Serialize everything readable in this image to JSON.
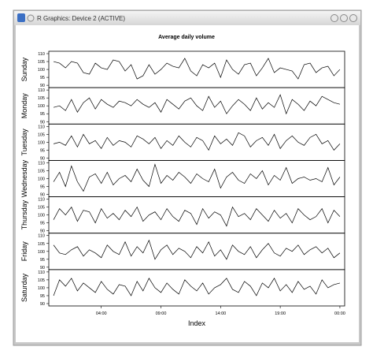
{
  "window": {
    "title": "R Graphics: Device 2 (ACTIVE)"
  },
  "chart_data": [
    {
      "type": "line",
      "title": "Average daily volume",
      "ylabel": "Sunday",
      "ylim": [
        88.5,
        111.5
      ],
      "yticks": [
        90,
        95,
        100,
        105,
        110
      ],
      "values": [
        105,
        104,
        101,
        105,
        104,
        98,
        97,
        104,
        101,
        100,
        106,
        105,
        99,
        103,
        94,
        96,
        103,
        97,
        100,
        104,
        102,
        101,
        107,
        99,
        96,
        103,
        101,
        104,
        95,
        106,
        100,
        97,
        103,
        104,
        96,
        101,
        107,
        98,
        101,
        100,
        99,
        94,
        103,
        104,
        98,
        101,
        102,
        96,
        100
      ]
    },
    {
      "type": "line",
      "ylabel": "Monday",
      "ylim": [
        88.5,
        111.5
      ],
      "yticks": [
        90,
        95,
        100,
        105,
        110
      ],
      "values": [
        99,
        100,
        97,
        104,
        96,
        102,
        105,
        98,
        104,
        101,
        99,
        103,
        102,
        100,
        104,
        101,
        99,
        102,
        96,
        104,
        101,
        98,
        103,
        105,
        100,
        97,
        106,
        99,
        103,
        95,
        100,
        104,
        101,
        97,
        105,
        98,
        102,
        99,
        107,
        95,
        104,
        101,
        97,
        103,
        100,
        106,
        104,
        102,
        101
      ]
    },
    {
      "type": "line",
      "ylabel": "Tuesday",
      "ylim": [
        88.5,
        111.5
      ],
      "yticks": [
        90,
        95,
        100,
        105,
        110
      ],
      "values": [
        99,
        100,
        98,
        104,
        97,
        105,
        99,
        101,
        96,
        103,
        98,
        101,
        100,
        97,
        104,
        102,
        99,
        103,
        96,
        101,
        98,
        104,
        100,
        97,
        103,
        101,
        95,
        104,
        99,
        102,
        98,
        106,
        104,
        97,
        101,
        103,
        98,
        105,
        96,
        101,
        104,
        100,
        98,
        103,
        105,
        99,
        101,
        95,
        99
      ]
    },
    {
      "type": "line",
      "ylabel": "Wednesday",
      "ylim": [
        88.5,
        111.5
      ],
      "yticks": [
        90,
        95,
        100,
        105,
        110
      ],
      "values": [
        98,
        104,
        95,
        108,
        98,
        92,
        101,
        103,
        97,
        104,
        96,
        100,
        102,
        98,
        106,
        99,
        95,
        109,
        97,
        102,
        99,
        104,
        101,
        97,
        103,
        100,
        98,
        106,
        94,
        101,
        104,
        99,
        97,
        103,
        100,
        105,
        96,
        102,
        99,
        107,
        97,
        100,
        101,
        99,
        100,
        98,
        107,
        96,
        101
      ]
    },
    {
      "type": "line",
      "ylabel": "Thursday",
      "ylim": [
        88.5,
        111.5
      ],
      "yticks": [
        90,
        95,
        100,
        105,
        110
      ],
      "values": [
        97,
        104,
        100,
        105,
        96,
        103,
        102,
        95,
        104,
        98,
        101,
        97,
        103,
        99,
        105,
        96,
        100,
        102,
        97,
        104,
        99,
        96,
        103,
        101,
        94,
        104,
        98,
        102,
        100,
        93,
        105,
        99,
        101,
        97,
        104,
        100,
        96,
        103,
        98,
        101,
        95,
        104,
        100,
        97,
        99,
        104,
        95,
        103,
        99
      ]
    },
    {
      "type": "line",
      "ylabel": "Friday",
      "ylim": [
        88.5,
        111.5
      ],
      "yticks": [
        90,
        95,
        100,
        105,
        110
      ],
      "values": [
        104,
        99,
        98,
        101,
        103,
        97,
        101,
        99,
        96,
        104,
        100,
        98,
        106,
        97,
        103,
        99,
        107,
        95,
        101,
        104,
        98,
        102,
        100,
        96,
        103,
        99,
        106,
        97,
        101,
        95,
        104,
        100,
        98,
        103,
        96,
        101,
        105,
        99,
        97,
        102,
        100,
        104,
        98,
        101,
        103,
        99,
        102,
        96,
        99
      ]
    },
    {
      "type": "line",
      "ylabel": "Saturday",
      "ylim": [
        88.5,
        111.5
      ],
      "yticks": [
        90,
        95,
        100,
        105,
        110
      ],
      "xlabel": "Index",
      "xlim": [
        -0.4,
        24.4
      ],
      "xticks": [
        {
          "value": 4,
          "label": "04:00"
        },
        {
          "value": 9,
          "label": "09:00"
        },
        {
          "value": 14,
          "label": "14:00"
        },
        {
          "value": 19,
          "label": "19:00"
        },
        {
          "value": 24,
          "label": "00:00"
        }
      ],
      "x": [
        0,
        0.5,
        1,
        1.5,
        2,
        2.5,
        3,
        3.5,
        4,
        4.5,
        5,
        5.5,
        6,
        6.5,
        7,
        7.5,
        8,
        8.5,
        9,
        9.5,
        10,
        10.5,
        11,
        11.5,
        12,
        12.5,
        13,
        13.5,
        14,
        14.5,
        15,
        15.5,
        16,
        16.5,
        17,
        17.5,
        18,
        18.5,
        19,
        19.5,
        20,
        20.5,
        21,
        21.5,
        22,
        22.5,
        23,
        23.5,
        24
      ],
      "values": [
        95,
        105,
        101,
        106,
        98,
        103,
        100,
        97,
        104,
        99,
        96,
        102,
        101,
        95,
        104,
        98,
        106,
        100,
        97,
        103,
        99,
        96,
        105,
        101,
        98,
        103,
        96,
        100,
        102,
        106,
        99,
        97,
        104,
        101,
        95,
        103,
        100,
        106,
        98,
        102,
        97,
        104,
        99,
        101,
        96,
        105,
        100,
        102,
        103
      ]
    }
  ]
}
